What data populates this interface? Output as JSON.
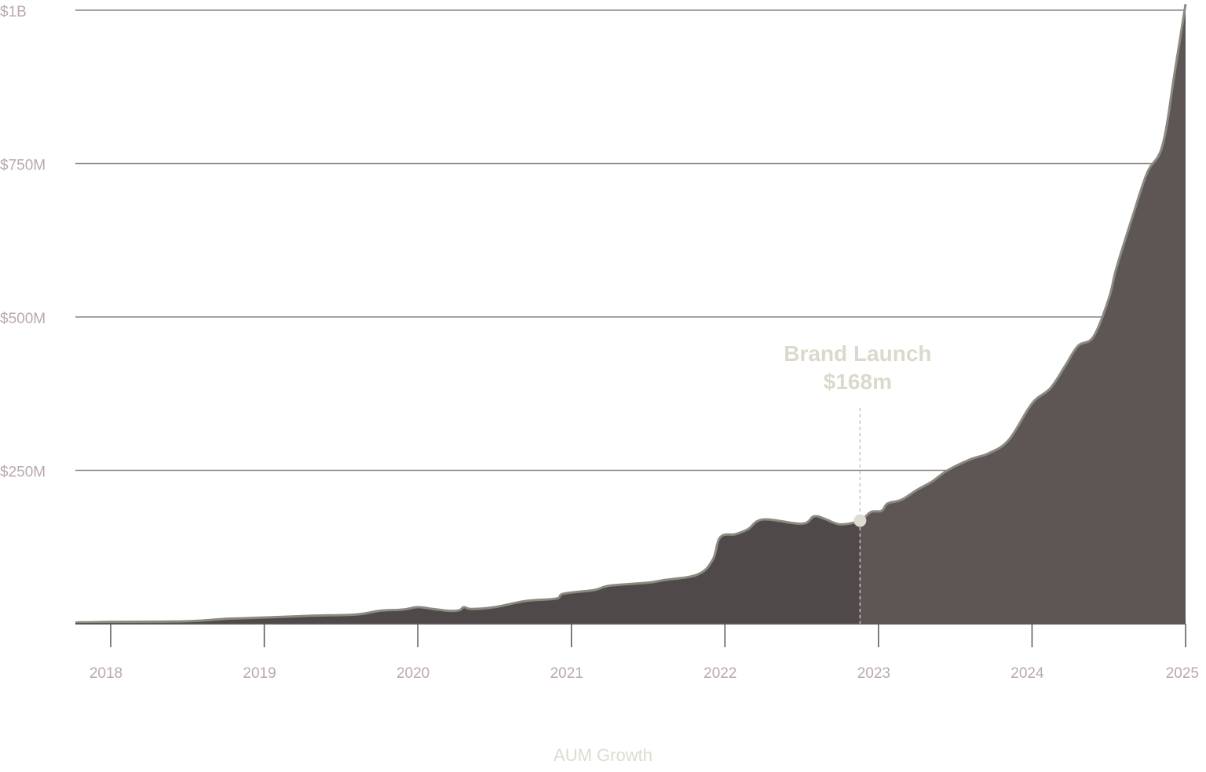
{
  "colors": {
    "area_before": "#4f4a49",
    "area_after": "#5e5654",
    "outline": "#8a8b80",
    "gridline": "#8a8282",
    "axis": "#5a5455",
    "tick_label": "#b9a9ab",
    "annotation": "#dcd9cc",
    "marker": "#dedbd0"
  },
  "caption": "AUM Growth",
  "chart_data": {
    "type": "area",
    "title": "",
    "xlabel": "",
    "ylabel": "",
    "x_range": [
      2017.77,
      2025.0
    ],
    "ylim": [
      0,
      1000
    ],
    "y_unit": "$M",
    "grid": true,
    "y_ticks": [
      {
        "value": 250,
        "label": "$250M"
      },
      {
        "value": 500,
        "label": "$500M"
      },
      {
        "value": 750,
        "label": "$750M"
      },
      {
        "value": 1000,
        "label": "$1B"
      }
    ],
    "x_ticks": [
      {
        "value": 2018,
        "label": "2018"
      },
      {
        "value": 2019,
        "label": "2019"
      },
      {
        "value": 2020,
        "label": "2020"
      },
      {
        "value": 2021,
        "label": "2021"
      },
      {
        "value": 2022,
        "label": "2022"
      },
      {
        "value": 2023,
        "label": "2023"
      },
      {
        "value": 2024,
        "label": "2024"
      },
      {
        "value": 2025,
        "label": "2025"
      }
    ],
    "series": [
      {
        "x": [
          2017.77,
          2018.0,
          2018.5,
          2018.75,
          2019.0,
          2019.3,
          2019.6,
          2019.75,
          2019.9,
          2020.0,
          2020.1,
          2020.2,
          2020.27,
          2020.3,
          2020.35,
          2020.5,
          2020.7,
          2020.9,
          2020.95,
          2021.15,
          2021.25,
          2021.5,
          2021.6,
          2021.82,
          2021.92,
          2021.97,
          2022.07,
          2022.15,
          2022.25,
          2022.5,
          2022.58,
          2022.65,
          2022.75,
          2022.88,
          2022.95,
          2023.02,
          2023.06,
          2023.15,
          2023.25,
          2023.35,
          2023.45,
          2023.6,
          2023.72,
          2023.85,
          2024.0,
          2024.12,
          2024.22,
          2024.3,
          2024.4,
          2024.5,
          2024.55,
          2024.65,
          2024.75,
          2024.85,
          2024.93,
          2025.0
        ],
        "y": [
          2,
          3,
          4,
          8,
          10,
          13,
          15,
          21,
          23,
          27,
          24,
          21,
          22,
          27,
          24,
          27,
          37,
          41,
          49,
          55,
          62,
          67,
          71,
          80,
          104,
          141,
          146,
          154,
          170,
          163,
          175,
          171,
          162,
          168,
          182,
          184,
          196,
          202,
          218,
          232,
          250,
          268,
          278,
          300,
          359,
          384,
          422,
          453,
          468,
          530,
          580,
          660,
          735,
          780,
          900,
          1010
        ]
      }
    ],
    "annotations": [
      {
        "x": 2022.88,
        "y": 168,
        "label": "Brand Launch",
        "value_label": "$168m"
      }
    ]
  }
}
